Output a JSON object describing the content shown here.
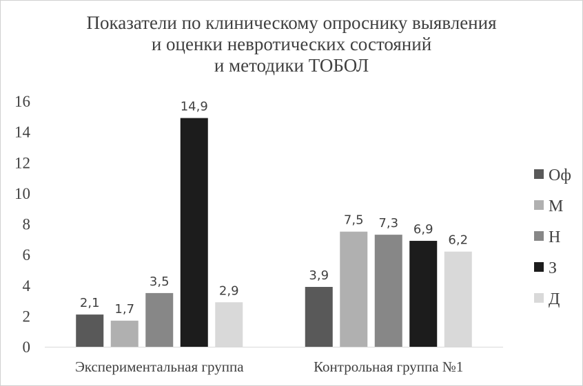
{
  "chart_data": {
    "type": "bar",
    "title": [
      "Показатели по клиническому опроснику выявления",
      "и оценки невротических состояний",
      "и методики ТОБОЛ"
    ],
    "categories": [
      "Экспериментальная группа",
      "Контрольная группа №1"
    ],
    "series": [
      {
        "name": "Оф",
        "values": [
          2.1,
          3.9
        ],
        "labels": [
          "2,1",
          "3,9"
        ],
        "color": "#595959"
      },
      {
        "name": "М",
        "values": [
          1.7,
          7.5
        ],
        "labels": [
          "1,7",
          "7,5"
        ],
        "color": "#b0b0b0"
      },
      {
        "name": "Н",
        "values": [
          3.5,
          7.3
        ],
        "labels": [
          "3,5",
          "7,3"
        ],
        "color": "#878787"
      },
      {
        "name": "З",
        "values": [
          14.9,
          6.9
        ],
        "labels": [
          "14,9",
          "6,9"
        ],
        "color": "#1c1c1c"
      },
      {
        "name": "Д",
        "values": [
          2.9,
          6.2
        ],
        "labels": [
          "2,9",
          "6,2"
        ],
        "color": "#d9d9d9"
      }
    ],
    "ylim": [
      0,
      16
    ],
    "yticks": [
      0,
      2,
      4,
      6,
      8,
      10,
      12,
      14,
      16
    ],
    "grid": false,
    "legend": "right"
  }
}
